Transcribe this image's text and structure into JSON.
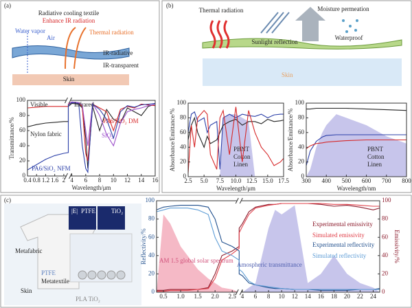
{
  "panel_labels": [
    "(a)",
    "(b)",
    "(c)"
  ],
  "panel_a": {
    "title": "Radiative cooling textile",
    "subtitle": "Enhance IR radiation",
    "water_vapor": "Water vapor",
    "air": "Air",
    "thermal": "Thermal radiation",
    "ir_radiative": "IR-radiative",
    "ir_transparent": "IR-transparent",
    "skin": "Skin"
  },
  "panel_b": {
    "thermal": "Thermal radiation",
    "sunlight": "Sunlight reflection",
    "moisture": "Moisture permeation",
    "waterproof": "Waterproof",
    "skin": "Skin"
  },
  "panel_c": {
    "metafabric": "Metafabric",
    "ptfe": "PTFE",
    "metatextile": "Metatextile",
    "skin": "Skin",
    "layers": "PLA TiO₂",
    "field": "|E|",
    "inset_ptfe": "PTFE",
    "inset_tio2": "TiO₂"
  },
  "chart_data": [
    {
      "type": "line",
      "xlabel": "Wavelength/μm",
      "ylabel": "Transmittance/%",
      "xlim": [
        0.4,
        16
      ],
      "xbreak": [
        2.2,
        3.5
      ],
      "ylim": [
        0,
        100
      ],
      "xticks": [
        0.4,
        0.8,
        1.2,
        1.6,
        2,
        4,
        6,
        8,
        10,
        12,
        14,
        16
      ],
      "yticks": [
        0,
        20,
        40,
        60,
        80,
        100
      ],
      "annotations": [
        "Visible",
        "Infrared"
      ],
      "x": [
        0.4,
        0.8,
        1.2,
        1.6,
        2.0,
        2.2,
        3.5,
        4,
        5,
        5.5,
        6,
        6.3,
        7,
        8,
        9,
        10,
        11,
        12,
        13,
        14,
        15,
        16
      ],
      "series": [
        {
          "name": "Nylon fabric",
          "color": "#222222",
          "values": [
            65,
            68,
            70,
            71,
            72,
            72,
            92,
            96,
            95,
            90,
            50,
            10,
            92,
            60,
            88,
            75,
            70,
            90,
            85,
            80,
            92,
            95
          ]
        },
        {
          "name": "PA6/SiO₂ DM",
          "color": "#d62728",
          "values": [
            90,
            91,
            92,
            92,
            92,
            92,
            95,
            97,
            96,
            92,
            30,
            20,
            95,
            90,
            85,
            60,
            88,
            92,
            90,
            95,
            94,
            93
          ]
        },
        {
          "name": "SiO₂",
          "color": "#9b4dca",
          "values": [
            null,
            null,
            null,
            null,
            null,
            null,
            96,
            98,
            97,
            94,
            60,
            40,
            96,
            80,
            55,
            40,
            70,
            85,
            88,
            90,
            93,
            95
          ]
        },
        {
          "name": "PA6/SiO₂ NFM",
          "color": "#2b3fa8",
          "values": [
            8,
            15,
            22,
            27,
            30,
            31,
            94,
            97,
            96,
            40,
            10,
            5,
            95,
            88,
            75,
            50,
            85,
            93,
            91,
            94,
            95,
            96
          ]
        }
      ]
    },
    {
      "type": "line",
      "xlabel": "Wavelength/μm",
      "ylabel": "Absorbance/Emittance/%",
      "xlim": [
        2.5,
        17.5
      ],
      "ylim": [
        0,
        100
      ],
      "xticks": [
        2.5,
        {
          "value": 5,
          "label": "5.0"
        },
        7.5,
        {
          "value": 10,
          "label": "10.0"
        },
        12.5,
        {
          "value": 15,
          "label": "15.0"
        },
        17.5
      ],
      "yticks": [
        0,
        20,
        40,
        60,
        80,
        100
      ],
      "x": [
        2.5,
        3,
        3.5,
        4,
        5,
        5.5,
        6,
        7,
        7.5,
        8,
        9,
        10,
        11,
        12,
        13,
        14,
        15,
        16,
        17,
        17.5
      ],
      "series": [
        {
          "color": "#b9b6e6",
          "fill": true,
          "values": [
            0,
            0,
            0,
            0,
            0,
            0,
            0,
            0,
            0,
            80,
            85,
            85,
            80,
            75,
            0,
            0,
            0,
            0,
            0,
            0
          ]
        },
        {
          "name": "PBNT",
          "color": "#2b3fa8",
          "values": [
            60,
            85,
            88,
            75,
            80,
            60,
            70,
            75,
            10,
            80,
            85,
            80,
            85,
            83,
            82,
            85,
            80,
            84,
            85,
            85
          ]
        },
        {
          "name": "Cotton",
          "color": "#222222",
          "values": [
            50,
            70,
            80,
            60,
            40,
            55,
            45,
            50,
            60,
            70,
            75,
            78,
            70,
            75,
            75,
            72,
            78,
            75,
            76,
            77
          ]
        },
        {
          "name": "Linen",
          "color": "#d62728",
          "values": [
            5,
            70,
            40,
            80,
            90,
            85,
            30,
            10,
            80,
            90,
            30,
            95,
            20,
            90,
            60,
            40,
            30,
            15,
            20,
            25
          ]
        }
      ]
    },
    {
      "type": "line",
      "xlabel": "Wavelength/nm",
      "ylabel": "Absorbance/Emittance/%",
      "xlim": [
        300,
        800
      ],
      "ylim": [
        0,
        100
      ],
      "xticks": [
        300,
        400,
        500,
        600,
        700,
        800
      ],
      "yticks": [
        0,
        20,
        40,
        60,
        80,
        100
      ],
      "x": [
        300,
        320,
        350,
        380,
        400,
        450,
        500,
        600,
        700,
        800
      ],
      "series": [
        {
          "color": "#b9b6e6",
          "fill": true,
          "values": [
            0,
            10,
            40,
            60,
            70,
            85,
            80,
            70,
            55,
            45
          ]
        },
        {
          "name": "PBNT",
          "color": "#222222",
          "values": [
            92,
            92,
            93,
            93,
            93,
            93,
            93,
            92,
            91,
            90
          ]
        },
        {
          "name": "Cotton",
          "color": "#2b3fa8",
          "values": [
            15,
            35,
            48,
            54,
            56,
            57,
            57,
            57,
            57,
            57
          ]
        },
        {
          "name": "Linen",
          "color": "#d62728",
          "values": [
            38,
            42,
            45,
            46,
            47,
            48,
            49,
            50,
            50,
            50
          ]
        }
      ]
    },
    {
      "type": "line",
      "ylabel": "Reflectivity/%",
      "y2label": "Emissivity/%",
      "xlim": [
        0.3,
        25
      ],
      "xbreak": [
        2.7,
        3.5
      ],
      "ylim": [
        0,
        100
      ],
      "y2lim": [
        0,
        100
      ],
      "xticks": [
        0.5,
        {
          "value": 1,
          "label": "1.0"
        },
        1.5,
        {
          "value": 2,
          "label": "2.0"
        },
        2.5,
        4,
        6,
        8,
        10,
        12,
        14,
        16,
        18,
        20,
        22,
        24
      ],
      "yticks": [
        0,
        20,
        40,
        60,
        80,
        100
      ],
      "y2ticks": [
        0,
        20,
        40,
        60,
        80,
        100
      ],
      "annotations": [
        "AM 1.5 global solar spectrum",
        "Amospheric transmittance"
      ],
      "x": [
        0.3,
        0.5,
        0.7,
        1.0,
        1.2,
        1.5,
        1.8,
        2.0,
        2.2,
        2.5,
        2.7,
        3.5,
        4,
        5,
        6,
        8,
        9,
        10,
        12,
        14,
        16,
        18,
        20,
        22,
        24,
        25
      ],
      "series": [
        {
          "color": "#f2a7b8",
          "fill": true,
          "values": [
            0,
            85,
            75,
            50,
            40,
            25,
            15,
            10,
            5,
            3,
            0,
            null,
            null,
            null,
            null,
            null,
            null,
            null,
            null,
            null,
            null,
            null,
            null,
            null,
            null,
            null
          ]
        },
        {
          "color": "#b9b6e6",
          "fill": true,
          "values": [
            null,
            null,
            null,
            null,
            null,
            null,
            null,
            null,
            null,
            null,
            null,
            0,
            0,
            5,
            10,
            70,
            90,
            85,
            95,
            10,
            20,
            40,
            20,
            10,
            5,
            0
          ]
        },
        {
          "name": "Experimental emissivity",
          "color": "#8b1a2b",
          "axis": "y2",
          "values": [
            2,
            2,
            3,
            3,
            3,
            3,
            5,
            20,
            40,
            45,
            50,
            70,
            75,
            88,
            93,
            96,
            96,
            97,
            97,
            97,
            96,
            94,
            95,
            93,
            90,
            92
          ]
        },
        {
          "name": "Simulated emissivity",
          "color": "#e0404a",
          "axis": "y2",
          "values": [
            1,
            1,
            2,
            2,
            2,
            3,
            4,
            15,
            35,
            42,
            48,
            65,
            72,
            85,
            92,
            95,
            96,
            97,
            97,
            97,
            97,
            96,
            96,
            95,
            94,
            94
          ]
        },
        {
          "name": "Experimental reflectivity",
          "color": "#1f4e8c",
          "values": [
            90,
            93,
            94,
            95,
            95,
            95,
            93,
            80,
            55,
            50,
            45,
            20,
            18,
            10,
            8,
            5,
            4,
            4,
            3,
            3,
            2,
            2,
            2,
            3,
            3,
            4
          ]
        },
        {
          "name": "Simulated reflectivity",
          "color": "#5b9bd5",
          "values": [
            88,
            90,
            92,
            92,
            92,
            90,
            85,
            60,
            45,
            40,
            35,
            25,
            22,
            12,
            8,
            6,
            5,
            4,
            3,
            3,
            3,
            3,
            3,
            3,
            3,
            3
          ]
        }
      ]
    }
  ]
}
